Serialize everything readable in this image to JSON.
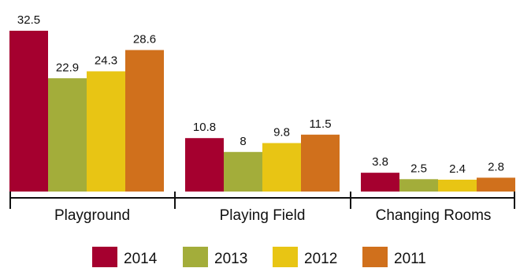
{
  "chart_data": {
    "type": "bar",
    "categories": [
      "Playground",
      "Playing Field",
      "Changing Rooms"
    ],
    "series": [
      {
        "name": "2014",
        "values": [
          32.5,
          10.8,
          3.8
        ]
      },
      {
        "name": "2013",
        "values": [
          22.9,
          8,
          2.5
        ]
      },
      {
        "name": "2012",
        "values": [
          24.3,
          9.8,
          2.4
        ]
      },
      {
        "name": "2011",
        "values": [
          28.6,
          11.5,
          2.8
        ]
      }
    ],
    "colors": [
      "#a5002f",
      "#a3ad3a",
      "#e8c514",
      "#d0701c"
    ],
    "ylim": [
      0,
      32.5
    ],
    "grid": false,
    "legend": "bottom",
    "title": "",
    "xlabel": "",
    "ylabel": ""
  }
}
